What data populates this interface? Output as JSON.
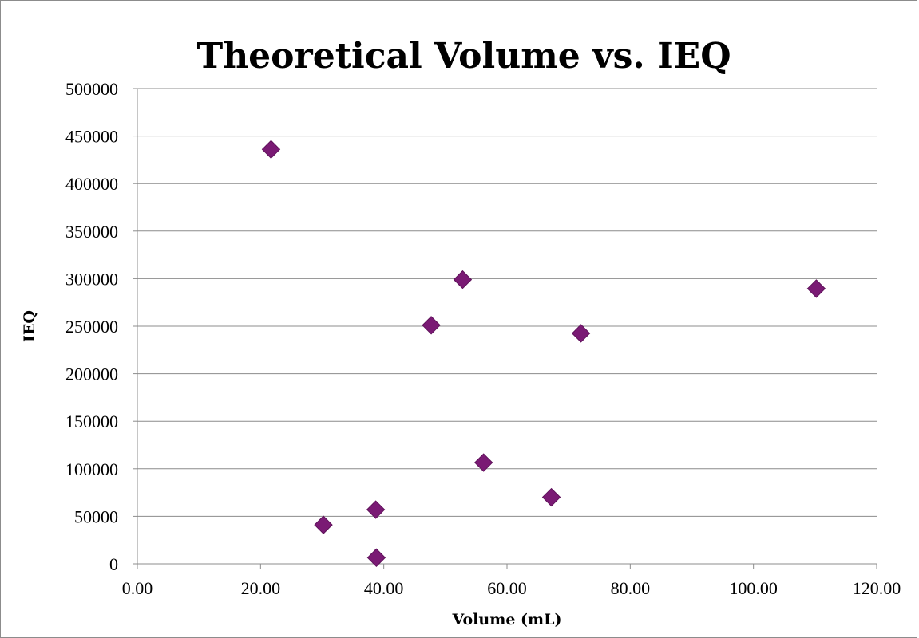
{
  "chart_data": {
    "type": "scatter",
    "title": "Theoretical Volume vs. IEQ",
    "xlabel": "Volume (mL)",
    "ylabel": "IEQ",
    "xlim": [
      0,
      120
    ],
    "ylim": [
      0,
      500000
    ],
    "x_ticks": [
      "0.00",
      "20.00",
      "40.00",
      "60.00",
      "80.00",
      "100.00",
      "120.00"
    ],
    "y_ticks": [
      "0",
      "50000",
      "100000",
      "150000",
      "200000",
      "250000",
      "300000",
      "350000",
      "400000",
      "450000",
      "500000"
    ],
    "grid": "horizontal",
    "marker": "diamond",
    "marker_color": "#7a1a74",
    "series": [
      {
        "points": [
          {
            "x": 21.7,
            "y": 436000
          },
          {
            "x": 30.2,
            "y": 41000
          },
          {
            "x": 38.7,
            "y": 57000
          },
          {
            "x": 38.8,
            "y": 6500
          },
          {
            "x": 47.7,
            "y": 251000
          },
          {
            "x": 52.8,
            "y": 299000
          },
          {
            "x": 56.2,
            "y": 106500
          },
          {
            "x": 67.2,
            "y": 70000
          },
          {
            "x": 72.0,
            "y": 242500
          },
          {
            "x": 110.2,
            "y": 289500
          }
        ]
      }
    ]
  }
}
